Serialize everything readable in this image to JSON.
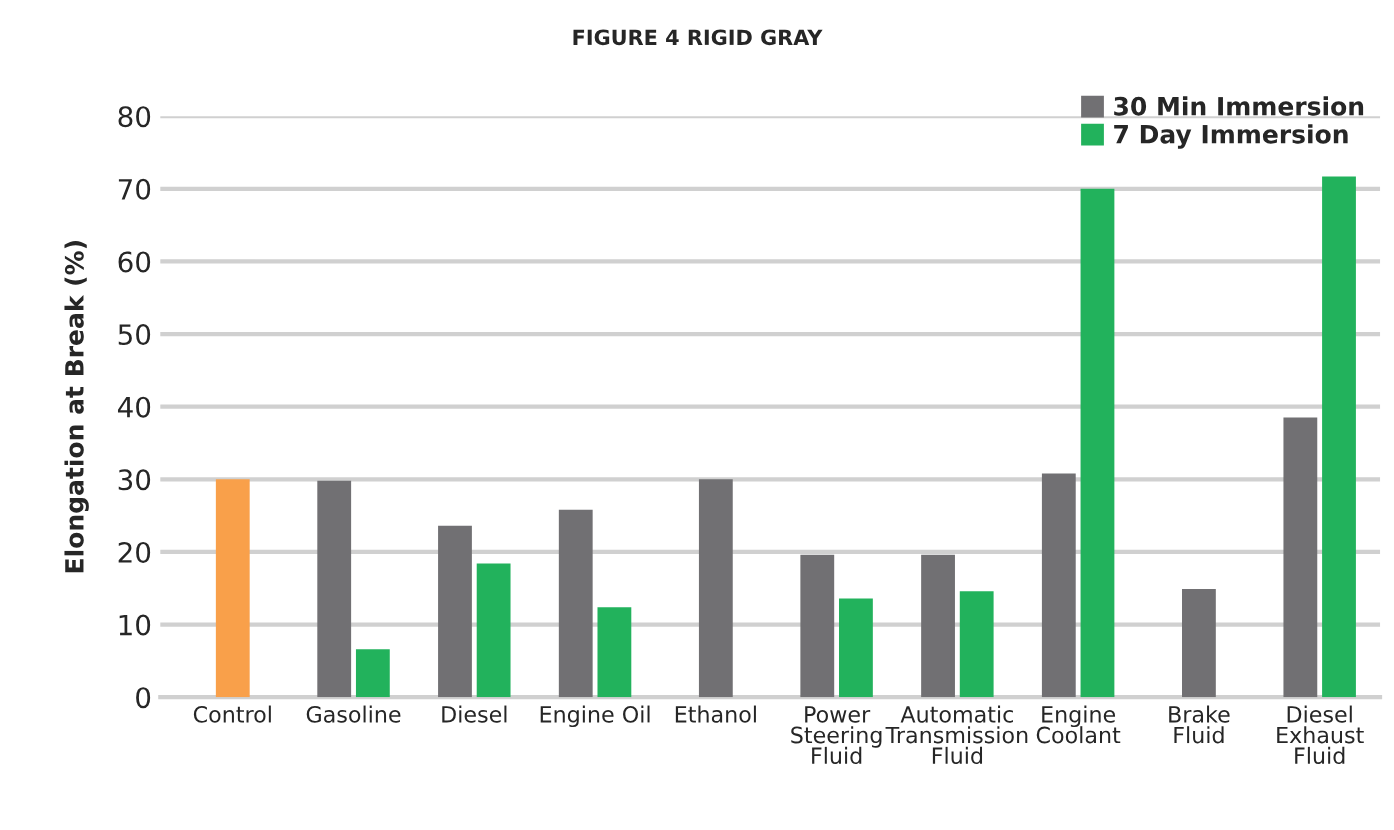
{
  "chart_data": {
    "type": "bar",
    "title": "FIGURE 4 RIGID GRAY",
    "ylabel": "Elongation at Break (%)",
    "categories": [
      "Control",
      "Gasoline",
      "Diesel",
      "Engine Oil",
      "Ethanol",
      "Power\nSteering\nFluid",
      "Automatic\nTransmission\nFluid",
      "Engine\nCoolant",
      "Brake\nFluid",
      "Diesel\nExhaust\nFluid"
    ],
    "series": [
      {
        "name": "30 Min Immersion",
        "color": "#717073",
        "colors": [
          "#f9a04a",
          "#717073",
          "#717073",
          "#717073",
          "#717073",
          "#717073",
          "#717073",
          "#717073",
          "#717073",
          "#717073"
        ],
        "values": [
          30,
          29.8,
          23.6,
          25.8,
          30,
          19.6,
          19.6,
          30.8,
          14.9,
          38.5
        ]
      },
      {
        "name": "7 Day Immersion",
        "color": "#22b25c",
        "values": [
          null,
          6.6,
          18.4,
          12.4,
          null,
          13.6,
          14.6,
          70,
          null,
          71.7
        ]
      }
    ],
    "ylim": [
      0,
      80
    ],
    "yticks": [
      0,
      10,
      20,
      30,
      40,
      50,
      60,
      70,
      80
    ],
    "grid": "y",
    "legend": "top right"
  }
}
